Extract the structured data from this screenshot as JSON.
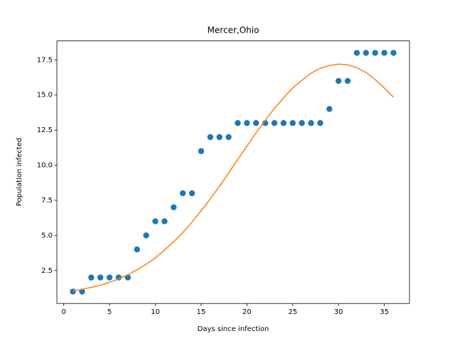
{
  "chart_data": {
    "type": "scatter",
    "title": "Mercer,Ohio",
    "x_label": "Days since infection",
    "y_label": "Population infected",
    "x": [
      1,
      2,
      3,
      4,
      5,
      6,
      7,
      8,
      9,
      10,
      11,
      12,
      13,
      14,
      15,
      16,
      17,
      18,
      19,
      20,
      21,
      22,
      23,
      24,
      25,
      26,
      27,
      28,
      29,
      30,
      31,
      32,
      33,
      34,
      35,
      36
    ],
    "series": [
      {
        "type": "scatter",
        "color": "#1f77b4",
        "values": [
          1,
          1,
          2,
          2,
          2,
          2,
          2,
          4,
          5,
          6,
          6,
          7,
          8,
          8,
          11,
          12,
          12,
          12,
          13,
          13,
          13,
          13,
          13,
          13,
          13,
          13,
          13,
          13,
          14,
          16,
          16,
          18,
          18,
          18,
          18,
          18
        ]
      },
      {
        "type": "line",
        "color": "#ff7f0e",
        "values": [
          1.05,
          1.15,
          1.3,
          1.45,
          1.65,
          1.9,
          2.2,
          2.55,
          2.95,
          3.4,
          3.95,
          4.55,
          5.2,
          5.95,
          6.75,
          7.6,
          8.5,
          9.45,
          10.4,
          11.35,
          12.3,
          13.2,
          14.05,
          14.8,
          15.5,
          16.05,
          16.55,
          16.9,
          17.1,
          17.2,
          17.15,
          16.95,
          16.6,
          16.1,
          15.5,
          14.85
        ]
      }
    ],
    "xlim": [
      -0.75,
      37.75
    ],
    "xticks": [
      0,
      5,
      10,
      15,
      20,
      25,
      30,
      35
    ],
    "ylim": [
      0.15,
      18.85
    ],
    "yticks": [
      2.5,
      {
        "value": 5,
        "label": "5.0"
      },
      7.5,
      {
        "value": 10,
        "label": "10.0"
      },
      12.5,
      {
        "value": 15,
        "label": "15.0"
      },
      17.5
    ]
  }
}
